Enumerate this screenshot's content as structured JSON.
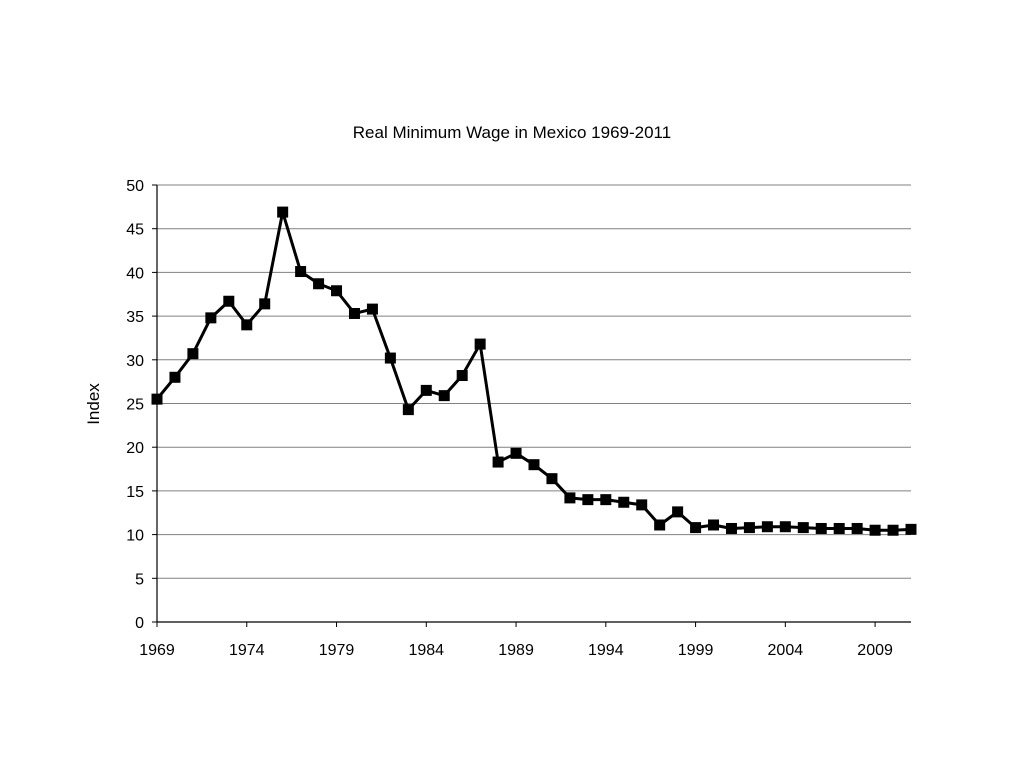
{
  "chart_data": {
    "type": "line",
    "title": "Real Minimum Wage in Mexico 1969-2011",
    "xlabel": "",
    "ylabel": "Index",
    "xlim": [
      1969,
      2011
    ],
    "ylim": [
      0,
      50
    ],
    "yticks": [
      0,
      5,
      10,
      15,
      20,
      25,
      30,
      35,
      40,
      45,
      50
    ],
    "xticks": [
      1969,
      1974,
      1979,
      1984,
      1989,
      1994,
      1999,
      2004,
      2009
    ],
    "grid": "horizontal",
    "legend": "none",
    "marker": "square",
    "series_color": "#000000",
    "gridline_color": "#808080",
    "x": [
      1969,
      1970,
      1971,
      1972,
      1973,
      1974,
      1975,
      1976,
      1977,
      1978,
      1979,
      1980,
      1981,
      1982,
      1983,
      1984,
      1985,
      1986,
      1987,
      1988,
      1989,
      1990,
      1991,
      1992,
      1993,
      1994,
      1995,
      1996,
      1997,
      1998,
      1999,
      2000,
      2001,
      2002,
      2003,
      2004,
      2005,
      2006,
      2007,
      2008,
      2009,
      2010,
      2011
    ],
    "series": [
      {
        "values": [
          25.5,
          28.0,
          30.7,
          34.8,
          36.7,
          34.0,
          36.4,
          46.9,
          40.1,
          38.7,
          37.9,
          35.3,
          35.8,
          30.2,
          24.3,
          26.5,
          25.9,
          28.2,
          31.8,
          18.3,
          19.3,
          18.0,
          16.4,
          14.2,
          14.0,
          14.0,
          13.7,
          13.4,
          11.1,
          12.6,
          10.8,
          11.1,
          10.7,
          10.8,
          10.9,
          10.9,
          10.8,
          10.7,
          10.7,
          10.7,
          10.5,
          10.5,
          10.6
        ]
      }
    ]
  }
}
